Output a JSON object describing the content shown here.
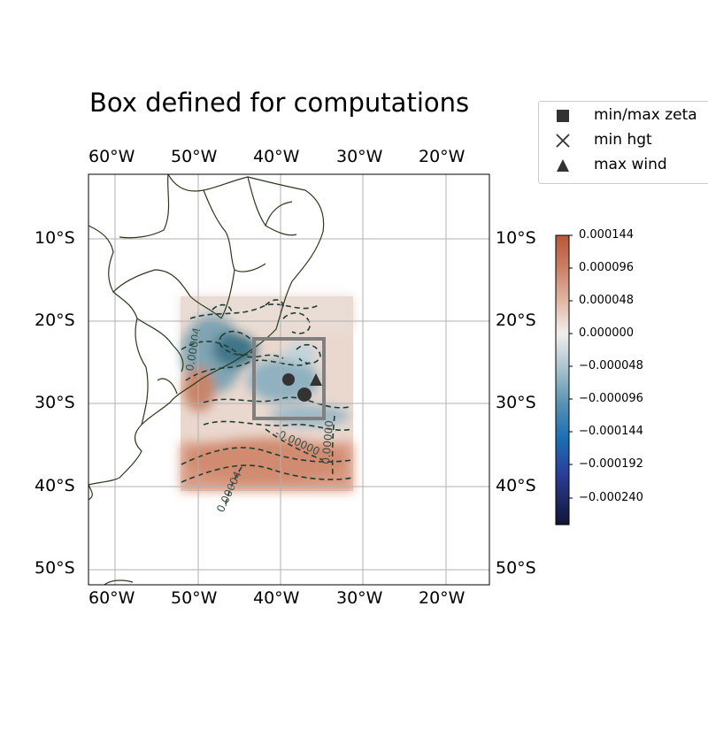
{
  "title": "Box defined for computations",
  "legend": [
    {
      "label": "min/max zeta",
      "marker": "square-marker",
      "color": "#333333"
    },
    {
      "label": "min hgt",
      "marker": "x-marker",
      "color": "#333333"
    },
    {
      "label": "max wind",
      "marker": "triangle-marker",
      "color": "#333333"
    }
  ],
  "map": {
    "lon_range": [
      -63,
      -15
    ],
    "lat_range": [
      -52,
      -2
    ],
    "x_ticks": [
      "60°W",
      "50°W",
      "40°W",
      "30°W",
      "20°W"
    ],
    "y_ticks": [
      "10°S",
      "20°S",
      "30°S",
      "40°S",
      "50°S"
    ],
    "grid": true,
    "field_extent": {
      "lon": [
        -52,
        -31
      ],
      "lat": [
        -40.5,
        -17
      ]
    },
    "computation_box": {
      "lon": [
        -43,
        -34.5
      ],
      "lat": [
        -32,
        -22.5
      ],
      "color": "#808080"
    },
    "contour_labels": [
      "-0.00000",
      "0.00004",
      "0.00000",
      "0.00004"
    ],
    "markers": [
      {
        "type": "circle",
        "lon": -39.0,
        "lat": -27.0
      },
      {
        "type": "circle",
        "lon": -37.0,
        "lat": -29.0
      },
      {
        "type": "triangle",
        "lon": -35.5,
        "lat": -26.5
      }
    ]
  },
  "colorbar": {
    "ticks": [
      "0.000144",
      "0.000096",
      "0.000048",
      "0.000000",
      "−0.000048",
      "−0.000096",
      "−0.000144",
      "−0.000192",
      "−0.000240"
    ],
    "colors": [
      "#b9573a",
      "#d89e86",
      "#f1efed",
      "#7aa7bb",
      "#1c6fb5",
      "#2b3f9c",
      "#121535"
    ]
  }
}
